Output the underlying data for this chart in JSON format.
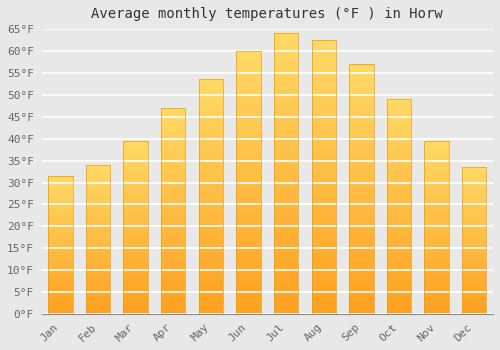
{
  "title": "Average monthly temperatures (°F ) in Horw",
  "months": [
    "Jan",
    "Feb",
    "Mar",
    "Apr",
    "May",
    "Jun",
    "Jul",
    "Aug",
    "Sep",
    "Oct",
    "Nov",
    "Dec"
  ],
  "values": [
    31.5,
    34.0,
    39.5,
    47.0,
    53.5,
    60.0,
    64.0,
    62.5,
    57.0,
    49.0,
    39.5,
    33.5
  ],
  "bar_color_top": "#FFD966",
  "bar_color_bottom": "#FFA020",
  "ylim": [
    0,
    65
  ],
  "ytick_step": 5,
  "background_color": "#e8e8e8",
  "plot_bg_color": "#e8e8e8",
  "grid_color": "#ffffff",
  "title_fontsize": 10,
  "tick_fontsize": 8,
  "font_family": "monospace",
  "bar_width": 0.65
}
